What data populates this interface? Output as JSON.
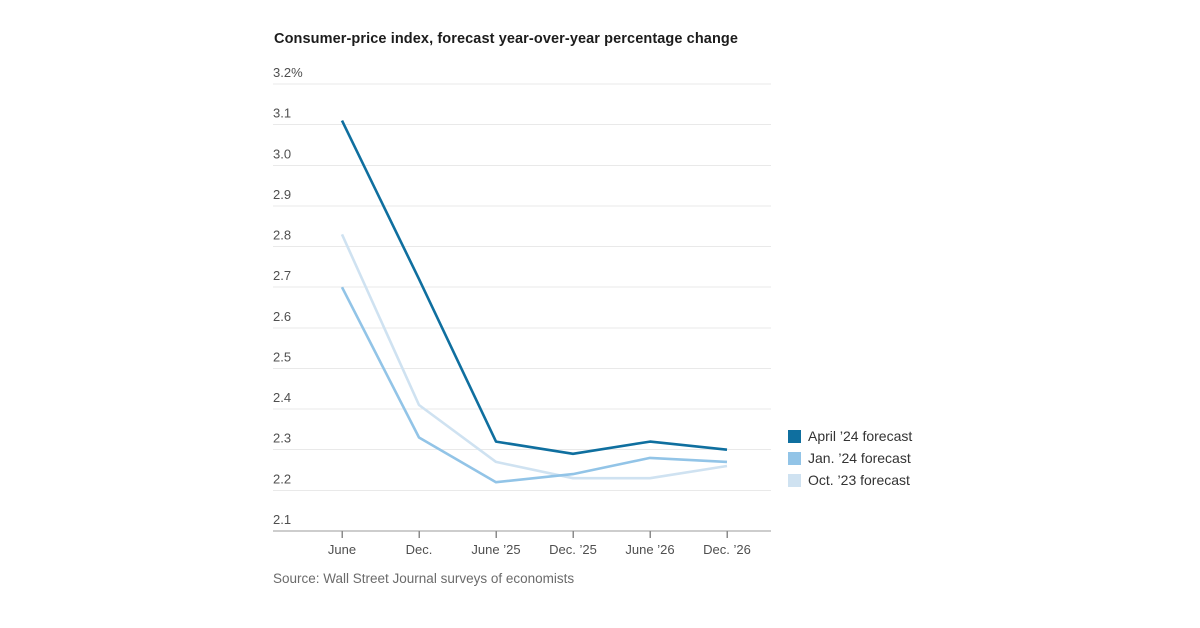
{
  "chart_data": {
    "type": "line",
    "title": "Consumer-price index, forecast year-over-year percentage change",
    "source": "Source: Wall Street Journal surveys of economists",
    "categories": [
      "June",
      "Dec.",
      "June ’25",
      "Dec. ’25",
      "June ’26",
      "Dec. ’26"
    ],
    "y_axis": {
      "min": 2.1,
      "max": 3.2,
      "step": 0.1,
      "tick_labels": [
        "3.2%",
        "3.1",
        "3.0",
        "2.9",
        "2.8",
        "2.7",
        "2.6",
        "2.5",
        "2.4",
        "2.3",
        "2.2",
        "2.1"
      ]
    },
    "series": [
      {
        "name": "April ’24 forecast",
        "color": "#0f6f9f",
        "values": [
          3.11,
          2.72,
          2.32,
          2.29,
          2.32,
          2.3
        ]
      },
      {
        "name": "Jan. ’24 forecast",
        "color": "#92c4e7",
        "values": [
          2.7,
          2.33,
          2.22,
          2.24,
          2.28,
          2.27
        ]
      },
      {
        "name": "Oct. ’23 forecast",
        "color": "#cfe2f1",
        "values": [
          2.83,
          2.41,
          2.27,
          2.23,
          2.23,
          2.26
        ]
      }
    ],
    "grid": true,
    "legend_position": "right",
    "colors": {
      "gridline": "#e9e9e9",
      "axis_line": "#9b9b9b",
      "tick": "#8b8b8b",
      "axis_label": "#4f4f4f"
    }
  }
}
